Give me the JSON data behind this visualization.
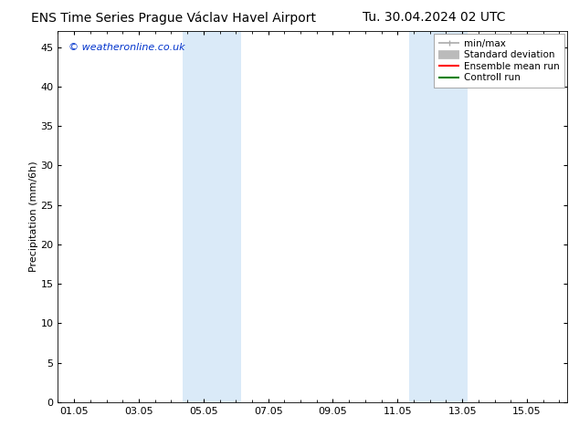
{
  "title": "ENS Time Series Prague Václav Havel Airport",
  "title_right": "Tu. 30.04.2024 02 UTC",
  "ylabel": "Precipitation (mm/6h)",
  "watermark": "© weatheronline.co.uk",
  "xlim_start": 0.0,
  "xlim_end": 15.75,
  "ylim": [
    0,
    47
  ],
  "yticks": [
    0,
    5,
    10,
    15,
    20,
    25,
    30,
    35,
    40,
    45
  ],
  "xtick_labels": [
    "01.05",
    "03.05",
    "05.05",
    "07.05",
    "09.05",
    "11.05",
    "13.05",
    "15.05"
  ],
  "xtick_positions": [
    0.5,
    2.5,
    4.5,
    6.5,
    8.5,
    10.5,
    12.5,
    14.5
  ],
  "shaded_bands": [
    {
      "xmin": 3.85,
      "xmax": 5.65
    },
    {
      "xmin": 10.85,
      "xmax": 12.65
    }
  ],
  "shade_color": "#daeaf8",
  "background_color": "#ffffff",
  "legend_items": [
    {
      "label": "min/max",
      "color": "#aaaaaa",
      "lw": 1.2,
      "style": "line_with_caps"
    },
    {
      "label": "Standard deviation",
      "color": "#bbbbbb",
      "lw": 7,
      "style": "line"
    },
    {
      "label": "Ensemble mean run",
      "color": "#ff0000",
      "lw": 1.5,
      "style": "line"
    },
    {
      "label": "Controll run",
      "color": "#008000",
      "lw": 1.5,
      "style": "line"
    }
  ],
  "watermark_color": "#0033cc",
  "title_fontsize": 10,
  "ylabel_fontsize": 8,
  "tick_fontsize": 8,
  "legend_fontsize": 7.5,
  "watermark_fontsize": 8
}
